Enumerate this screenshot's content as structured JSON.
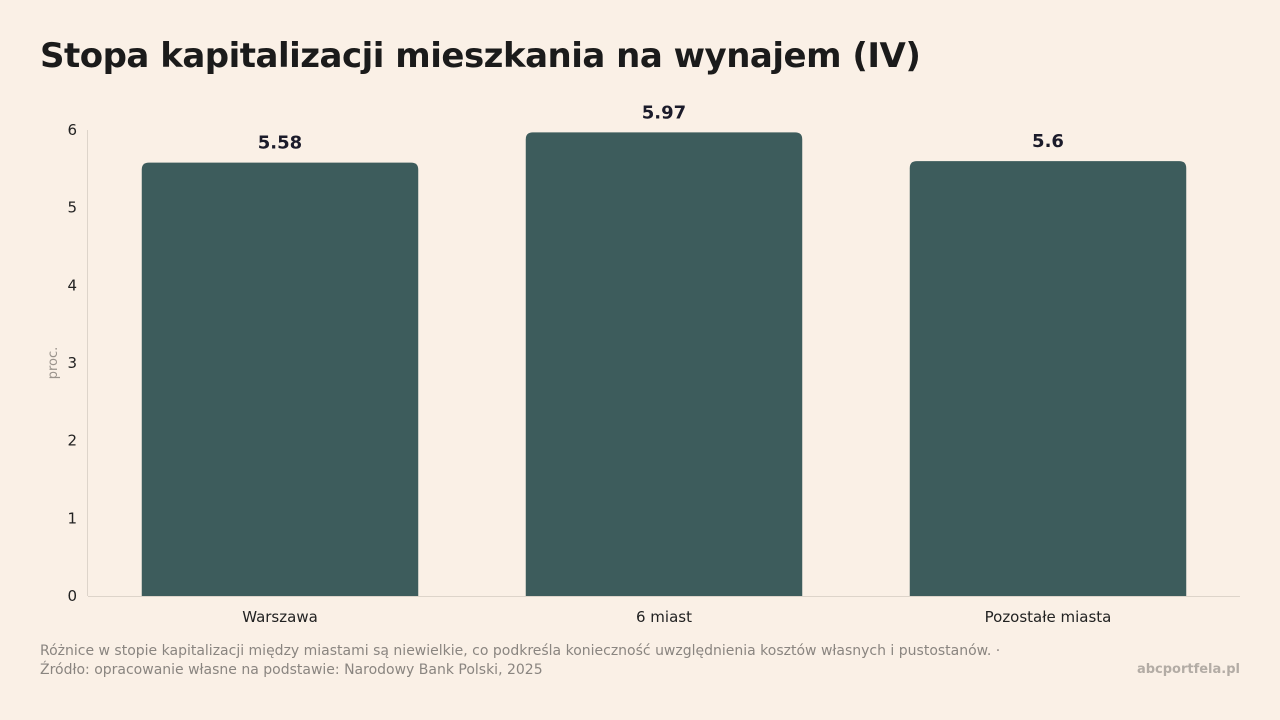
{
  "title": "Stopa kapitalizacji mieszkania na wynajem (IV)",
  "footnote": "Różnice w stopie kapitalizacji między miastami są niewielkie, co podkreśla konieczność uwzględnienia kosztów własnych i pustostanów. · Źródło: opracowanie własne na podstawie: Narodowy Bank Polski, 2025",
  "brand": "abcportfela.pl",
  "colors": {
    "bar": "#3d5c5c",
    "background": "#faf0e6",
    "axis": "#ddd4ca",
    "tick_text": "#222222",
    "ylabel_text": "#9a938c"
  },
  "chart_data": {
    "type": "bar",
    "categories": [
      "Warszawa",
      "6 miast",
      "Pozostałe miasta"
    ],
    "values": [
      5.58,
      5.97,
      5.6
    ],
    "value_labels": [
      "5.58",
      "5.97",
      "5.6"
    ],
    "ylabel": "proc.",
    "xlabel": "",
    "ylim": [
      0,
      6
    ],
    "yticks": [
      0,
      1,
      2,
      3,
      4,
      5,
      6
    ],
    "grid": false,
    "legend": "none"
  }
}
